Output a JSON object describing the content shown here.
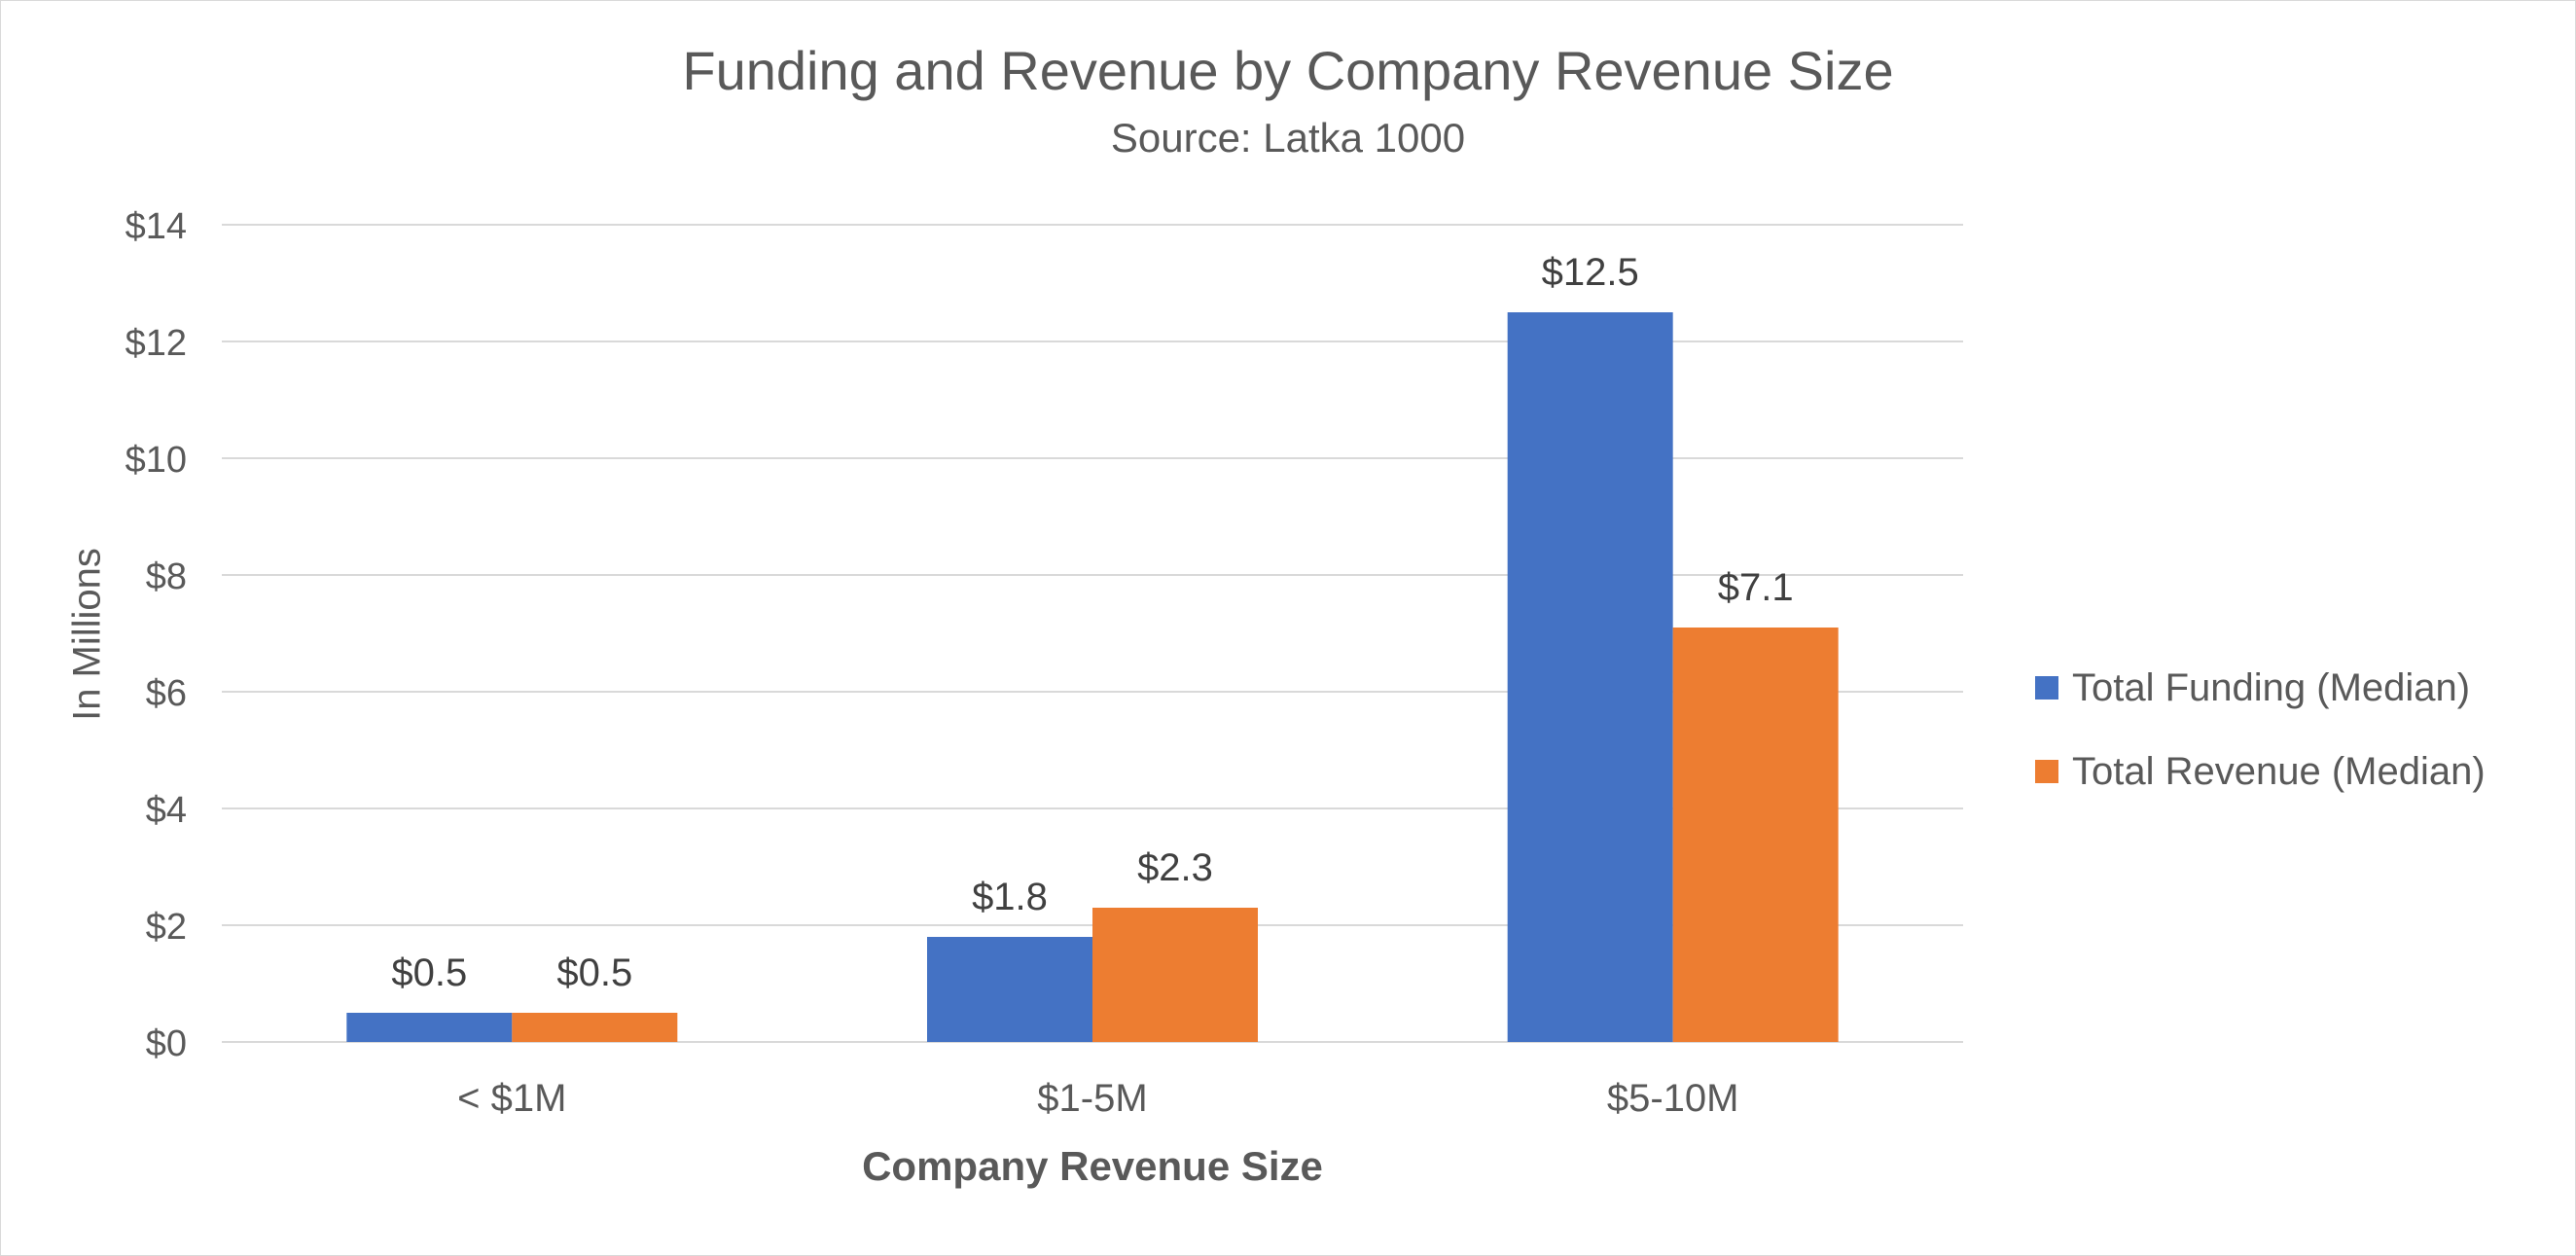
{
  "chart_data": {
    "type": "bar",
    "title": "Funding and Revenue by Company Revenue Size",
    "subtitle": "Source:  Latka 1000",
    "xlabel": "Company Revenue Size",
    "ylabel": "In Millions",
    "categories": [
      "< $1M",
      "$1-5M",
      "$5-10M"
    ],
    "series": [
      {
        "name": "Total Funding (Median)",
        "color": "#4472C4",
        "values": [
          0.5,
          1.8,
          12.5
        ],
        "labels": [
          "$0.5",
          "$1.8",
          "$12.5"
        ]
      },
      {
        "name": "Total Revenue (Median)",
        "color": "#ED7D31",
        "values": [
          0.5,
          2.3,
          7.1
        ],
        "labels": [
          "$0.5",
          "$2.3",
          "$7.1"
        ]
      }
    ],
    "ylim": [
      0,
      14
    ],
    "yticks": [
      0,
      2,
      4,
      6,
      8,
      10,
      12,
      14
    ],
    "ytick_labels": [
      "$0",
      "$2",
      "$4",
      "$6",
      "$8",
      "$10",
      "$12",
      "$14"
    ],
    "grid": true,
    "legend_position": "right"
  }
}
